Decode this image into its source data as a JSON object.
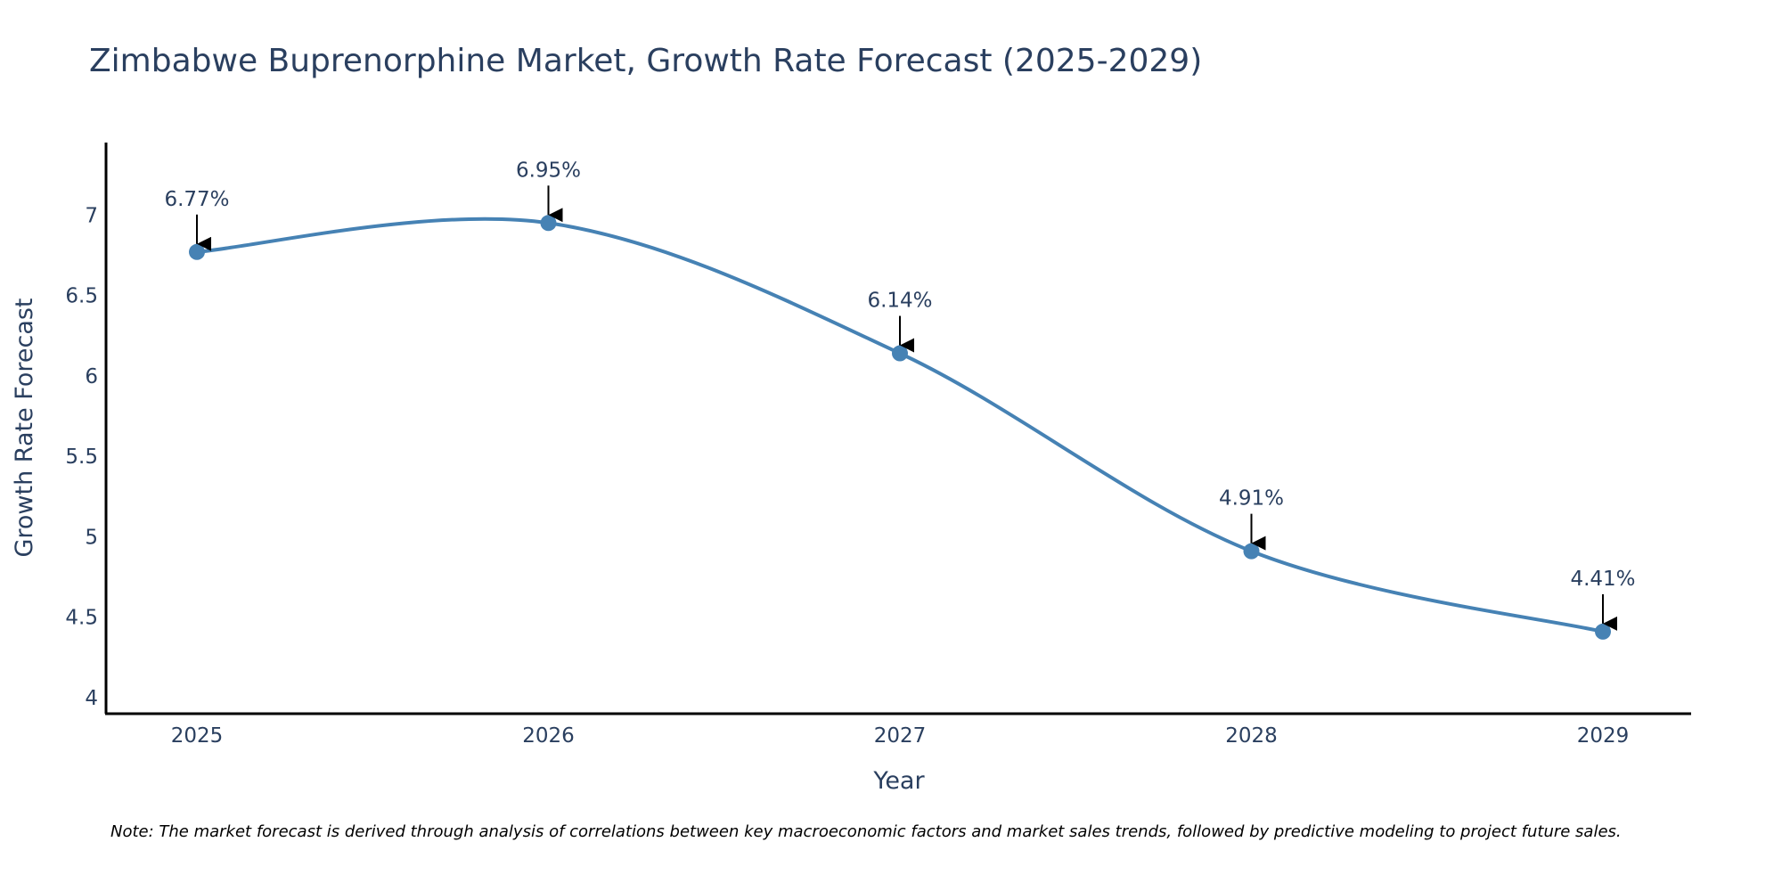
{
  "chart_data": {
    "type": "line",
    "title": "Zimbabwe Buprenorphine Market, Growth Rate Forecast (2025-2029)",
    "xlabel": "Year",
    "ylabel": "Growth Rate Forecast",
    "categories": [
      "2025",
      "2026",
      "2027",
      "2028",
      "2029"
    ],
    "values": [
      6.77,
      6.95,
      6.14,
      4.91,
      4.41
    ],
    "data_labels": [
      "6.77%",
      "6.95%",
      "6.14%",
      "4.91%",
      "4.41%"
    ],
    "y_ticks": [
      4,
      4.5,
      5,
      5.5,
      6,
      6.5,
      7
    ],
    "y_tick_labels": [
      "4",
      "4.5",
      "5",
      "5.5",
      "6",
      "6.5",
      "7"
    ],
    "ylim": [
      3.9,
      7.45
    ],
    "line_shape": "spline",
    "grid": false,
    "line_color": "#4682b4",
    "marker_color": "#4682b4",
    "annotation_arrow_color": "#000000",
    "note": "Note: The market forecast is derived through analysis of correlations between key macroeconomic factors and market sales trends, followed by predictive modeling to project future sales."
  }
}
